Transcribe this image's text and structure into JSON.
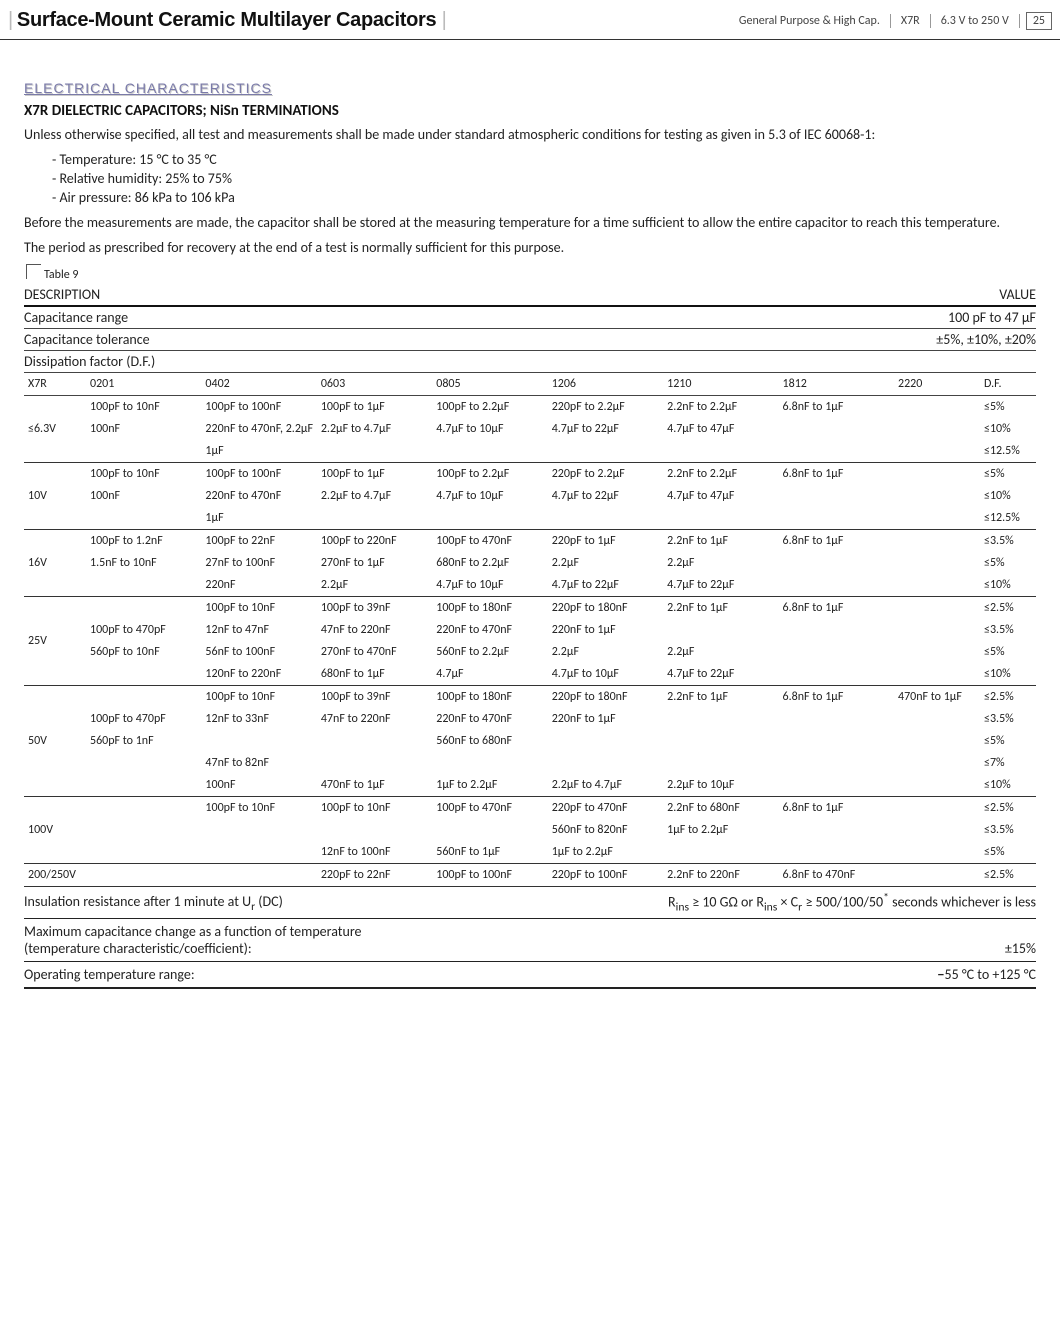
{
  "header": {
    "title_main": "Surface-Mount Ceramic Multilayer Capacitors",
    "crumb1": "General Purpose & High Cap.",
    "crumb2": "X7R",
    "crumb3": "6.3 V to 250 V",
    "page_no": "25"
  },
  "section": {
    "heading": "ELECTRICAL CHARACTERISTICS",
    "sub": "X7R DIELECTRIC CAPACITORS; NiSn TERMINATIONS",
    "intro1": "Unless otherwise specified, all test and measurements shall be made under standard  atmospheric conditions for testing as given in 5.3 of IEC 60068-1:",
    "b1": "- Temperature: 15 °C to 35 °C",
    "b2": "- Relative humidity: 25% to 75%",
    "b3": "- Air pressure: 86 kPa to 106 kPa",
    "intro2": "Before the measurements are made, the capacitor shall be stored at the measuring temperature for a time sufficient to allow the entire capacitor to reach this temperature.",
    "intro3": "The period as prescribed for recovery at the end of a test is normally sufficient for this purpose."
  },
  "table_label": "Table 9",
  "desc": {
    "left": "DESCRIPTION",
    "right": "VALUE",
    "cap_range_l": "Capacitance range",
    "cap_range_r": "100 pF to 47 µF",
    "cap_tol_l": "Capacitance tolerance",
    "cap_tol_r": "±5%, ±10%, ±20%",
    "df": "Dissipation factor (D.F.)"
  },
  "cols": {
    "x7r": "X7R",
    "c0201": "0201",
    "c0402": "0402",
    "c0603": "0603",
    "c0805": "0805",
    "c1206": "1206",
    "c1210": "1210",
    "c1812": "1812",
    "c2220": "2220",
    "df": "D.F."
  },
  "groups": [
    {
      "label": "≤6.3V",
      "rows": [
        [
          "100pF to 10nF",
          "100pF to 100nF",
          "100pF to 1µF",
          "100pF to 2.2µF",
          "220pF to 2.2µF",
          "2.2nF to 2.2µF",
          "6.8nF to 1µF",
          "",
          "≤5%"
        ],
        [
          "100nF",
          "220nF to 470nF, 2.2µF",
          "2.2µF to 4.7µF",
          "4.7µF to 10µF",
          "4.7µF to 22µF",
          "4.7µF to 47µF",
          "",
          "",
          "≤10%"
        ],
        [
          "",
          "1µF",
          "",
          "",
          "",
          "",
          "",
          "",
          "≤12.5%"
        ]
      ]
    },
    {
      "label": "10V",
      "rows": [
        [
          "100pF to 10nF",
          "100pF to 100nF",
          "100pF to 1µF",
          "100pF to 2.2µF",
          "220pF to 2.2µF",
          "2.2nF to 2.2µF",
          "6.8nF to 1µF",
          "",
          "≤5%"
        ],
        [
          "100nF",
          "220nF to 470nF",
          "2.2µF to 4.7µF",
          "4.7µF to 10µF",
          "4.7µF to 22µF",
          "4.7µF to 47µF",
          "",
          "",
          "≤10%"
        ],
        [
          "",
          "1µF",
          "",
          "",
          "",
          "",
          "",
          "",
          "≤12.5%"
        ]
      ]
    },
    {
      "label": "16V",
      "rows": [
        [
          "100pF to 1.2nF",
          "100pF to 22nF",
          "100pF to 220nF",
          "100pF to 470nF",
          "220pF to 1µF",
          "2.2nF to 1µF",
          "6.8nF to 1µF",
          "",
          "≤3.5%"
        ],
        [
          "1.5nF to 10nF",
          "27nF to 100nF",
          "270nF to 1µF",
          "680nF to 2.2µF",
          "2.2µF",
          "2.2µF",
          "",
          "",
          "≤5%"
        ],
        [
          "",
          "220nF",
          "2.2µF",
          "4.7µF to 10µF",
          "4.7µF to 22µF",
          "4.7µF to 22µF",
          "",
          "",
          "≤10%"
        ]
      ]
    },
    {
      "label": "25V",
      "rows": [
        [
          "",
          "100pF to 10nF",
          "100pF to 39nF",
          "100pF to 180nF",
          "220pF to 180nF",
          "2.2nF to 1µF",
          "6.8nF to 1µF",
          "",
          "≤2.5%"
        ],
        [
          "100pF to 470pF",
          "12nF to 47nF",
          "47nF to 220nF",
          "220nF to 470nF",
          "220nF to 1µF",
          "",
          "",
          "",
          "≤3.5%"
        ],
        [
          "560pF to 10nF",
          "56nF to 100nF",
          "270nF to 470nF",
          "560nF to 2.2µF",
          "2.2µF",
          "2.2µF",
          "",
          "",
          "≤5%"
        ],
        [
          "",
          "120nF to 220nF",
          "680nF to 1µF",
          "4.7µF",
          "4.7µF to 10µF",
          "4.7µF to 22µF",
          "",
          "",
          "≤10%"
        ]
      ]
    },
    {
      "label": "50V",
      "rows": [
        [
          "",
          "100pF to 10nF",
          "100pF to 39nF",
          "100pF to 180nF",
          "220pF to 180nF",
          "2.2nF to 1µF",
          "6.8nF to 1µF",
          "470nF to 1µF",
          "≤2.5%"
        ],
        [
          "100pF to 470pF",
          "12nF to 33nF",
          "47nF to 220nF",
          "220nF to 470nF",
          "220nF to 1µF",
          "",
          "",
          "",
          "≤3.5%"
        ],
        [
          "560pF to 1nF",
          "",
          "",
          "560nF to 680nF",
          "",
          "",
          "",
          "",
          "≤5%"
        ],
        [
          "",
          "47nF to 82nF",
          "",
          "",
          "",
          "",
          "",
          "",
          "≤7%"
        ],
        [
          "",
          "100nF",
          "470nF to 1µF",
          "1µF to 2.2µF",
          "2.2µF to 4.7µF",
          "2.2µF to 10µF",
          "",
          "",
          "≤10%"
        ]
      ]
    },
    {
      "label": "100V",
      "rows": [
        [
          "",
          "100pF to 10nF",
          "100pF to 10nF",
          "100pF to 470nF",
          "220pF to 470nF",
          "2.2nF to 680nF",
          "6.8nF to 1µF",
          "",
          "≤2.5%"
        ],
        [
          "",
          "",
          "",
          "",
          "560nF to 820nF",
          "1µF to 2.2µF",
          "",
          "",
          "≤3.5%"
        ],
        [
          "",
          "",
          "12nF to 100nF",
          "560nF to 1µF",
          "1µF to 2.2µF",
          "",
          "",
          "",
          "≤5%"
        ]
      ]
    },
    {
      "label": "200/250V",
      "rows": [
        [
          "",
          "",
          "220pF to 22nF",
          "100pF to 100nF",
          "220pF to 100nF",
          "2.2nF to 220nF",
          "6.8nF to 470nF",
          "",
          "≤2.5%"
        ]
      ]
    }
  ],
  "foot": {
    "ins_l": "Insulation resistance after 1 minute at U",
    "ins_l_sub": "r",
    "ins_l_tail": " (DC)",
    "ins_r_pre": "R",
    "ins_r_sub1": "ins",
    "ins_r_mid1": " ≥ 10 GΩ or R",
    "ins_r_mid2": " × C",
    "ins_r_sub2": "r",
    "ins_r_tail": " ≥ 500/100/50",
    "ins_r_sup": "*",
    "ins_r_end": " seconds whichever is less",
    "maxcap_l1": "Maximum capacitance change as a function of temperature",
    "maxcap_l2": "(temperature characteristic/coefficient):",
    "maxcap_r": "±15%",
    "optemp_l": "Operating temperature range:",
    "optemp_r_b": "−",
    "optemp_r": "55 °C to +125 °C"
  }
}
